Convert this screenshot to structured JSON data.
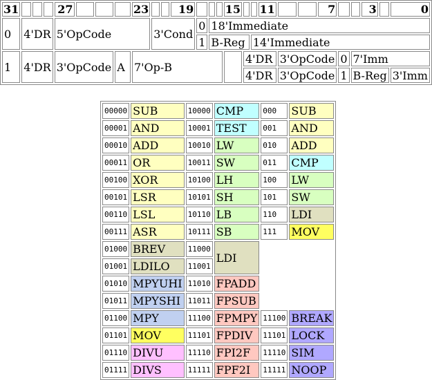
{
  "encoding": {
    "bit_header": {
      "b31": "31",
      "b27": "27",
      "b23": "23",
      "b19": "19",
      "b15": "15",
      "b11": "11",
      "b7": "7",
      "b3": "3",
      "b0": "0"
    },
    "format0": {
      "lead": "0",
      "dr": "4'DR",
      "opcode": "5'OpCode",
      "cond": "3'Cond",
      "sel0": "0",
      "imm18": "18'Immediate",
      "sel1": "1",
      "breg": "B-Reg",
      "imm14": "14'Immediate"
    },
    "format1": {
      "lead": "1",
      "dr": "4'DR",
      "opcode": "3'OpCode",
      "a": "A",
      "opb": "7'Op-B",
      "row1": {
        "dr": "4'DR",
        "opcode": "3'OpCode",
        "sel": "0",
        "imm": "7'Imm"
      },
      "row2": {
        "dr": "4'DR",
        "opcode": "3'OpCode",
        "sel": "1",
        "breg": "B-Reg",
        "imm": "3'Imm"
      }
    }
  },
  "opcodes": {
    "rows": [
      {
        "c1": "00000",
        "n1": "SUB",
        "k1": "c-alu",
        "c2": "10000",
        "n2": "CMP",
        "k2": "c-cmp",
        "c3": "000",
        "n3": "SUB",
        "k3": "c-alu"
      },
      {
        "c1": "00001",
        "n1": "AND",
        "k1": "c-alu",
        "c2": "10001",
        "n2": "TEST",
        "k2": "c-cmp",
        "c3": "001",
        "n3": "AND",
        "k3": "c-alu"
      },
      {
        "c1": "00010",
        "n1": "ADD",
        "k1": "c-alu",
        "c2": "10010",
        "n2": "LW",
        "k2": "c-mem",
        "c3": "010",
        "n3": "ADD",
        "k3": "c-alu"
      },
      {
        "c1": "00011",
        "n1": "OR",
        "k1": "c-alu",
        "c2": "10011",
        "n2": "SW",
        "k2": "c-mem",
        "c3": "011",
        "n3": "CMP",
        "k3": "c-cmp"
      },
      {
        "c1": "00100",
        "n1": "XOR",
        "k1": "c-alu",
        "c2": "10100",
        "n2": "LH",
        "k2": "c-mem",
        "c3": "100",
        "n3": "LW",
        "k3": "c-mem"
      },
      {
        "c1": "00101",
        "n1": "LSR",
        "k1": "c-alu",
        "c2": "10101",
        "n2": "SH",
        "k2": "c-mem",
        "c3": "101",
        "n3": "SW",
        "k3": "c-mem"
      },
      {
        "c1": "00110",
        "n1": "LSL",
        "k1": "c-alu",
        "c2": "10110",
        "n2": "LB",
        "k2": "c-mem",
        "c3": "110",
        "n3": "LDI",
        "k3": "c-ldi"
      },
      {
        "c1": "00111",
        "n1": "ASR",
        "k1": "c-alu",
        "c2": "10111",
        "n2": "SB",
        "k2": "c-mem",
        "c3": "111",
        "n3": "MOV",
        "k3": "c-mov"
      },
      {
        "c1": "01000",
        "n1": "BREV",
        "k1": "c-ldi",
        "c2": "11000",
        "n2": "LDI",
        "k2": "c-ldi",
        "c3": "",
        "n3": "",
        "k3": ""
      },
      {
        "c1": "01001",
        "n1": "LDILO",
        "k1": "c-ldi",
        "c2": "11001",
        "n2": "",
        "k2": "",
        "c3": "",
        "n3": "",
        "k3": ""
      },
      {
        "c1": "01010",
        "n1": "MPYUHI",
        "k1": "c-mpy",
        "c2": "11010",
        "n2": "FPADD",
        "k2": "c-fp",
        "c3": "",
        "n3": "",
        "k3": ""
      },
      {
        "c1": "01011",
        "n1": "MPYSHI",
        "k1": "c-mpy",
        "c2": "11011",
        "n2": "FPSUB",
        "k2": "c-fp",
        "c3": "",
        "n3": "",
        "k3": ""
      },
      {
        "c1": "01100",
        "n1": "MPY",
        "k1": "c-mpy",
        "c2": "11100",
        "n2": "FPMPY",
        "k2": "c-fp",
        "c3": "11100",
        "n3": "BREAK",
        "k3": "c-sys"
      },
      {
        "c1": "01101",
        "n1": "MOV",
        "k1": "c-mov",
        "c2": "11101",
        "n2": "FPDIV",
        "k2": "c-fp",
        "c3": "11101",
        "n3": "LOCK",
        "k3": "c-sys"
      },
      {
        "c1": "01110",
        "n1": "DIVU",
        "k1": "c-div",
        "c2": "11110",
        "n2": "FPI2F",
        "k2": "c-fp",
        "c3": "11110",
        "n3": "SIM",
        "k3": "c-sys"
      },
      {
        "c1": "01111",
        "n1": "DIVS",
        "k1": "c-div",
        "c2": "11111",
        "n2": "FPF2I",
        "k2": "c-fp",
        "c3": "11111",
        "n3": "NOOP",
        "k3": "c-sys"
      }
    ],
    "colors": {
      "alu": "#ffffc0",
      "cmp": "#c0ffff",
      "mem": "#d8ffc0",
      "ldi": "#e0e0c0",
      "mov": "#ffff60",
      "mpy": "#c0d0f0",
      "fp": "#ffc8c0",
      "div": "#ffc0ff",
      "sys": "#b0a8ff"
    }
  }
}
